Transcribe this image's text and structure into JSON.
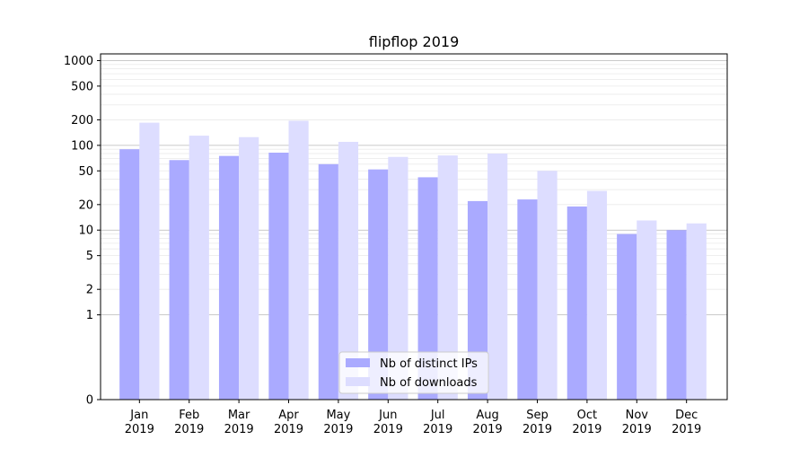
{
  "chart_data": {
    "type": "bar",
    "title": "flipflop 2019",
    "xlabel": "",
    "ylabel": "",
    "yscale": "symlog",
    "ylim": [
      0,
      1200
    ],
    "grid": true,
    "legend_position": "bottom-center",
    "categories": [
      {
        "month": "Jan",
        "year": "2019"
      },
      {
        "month": "Feb",
        "year": "2019"
      },
      {
        "month": "Mar",
        "year": "2019"
      },
      {
        "month": "Apr",
        "year": "2019"
      },
      {
        "month": "May",
        "year": "2019"
      },
      {
        "month": "Jun",
        "year": "2019"
      },
      {
        "month": "Jul",
        "year": "2019"
      },
      {
        "month": "Aug",
        "year": "2019"
      },
      {
        "month": "Sep",
        "year": "2019"
      },
      {
        "month": "Oct",
        "year": "2019"
      },
      {
        "month": "Nov",
        "year": "2019"
      },
      {
        "month": "Dec",
        "year": "2019"
      }
    ],
    "y_ticks": [
      {
        "value": 0,
        "label": "0"
      },
      {
        "value": 1,
        "label": "1"
      },
      {
        "value": 2,
        "label": "2"
      },
      {
        "value": 5,
        "label": "5"
      },
      {
        "value": 10,
        "label": "10"
      },
      {
        "value": 20,
        "label": "20"
      },
      {
        "value": 50,
        "label": "50"
      },
      {
        "value": 100,
        "label": "100"
      },
      {
        "value": 200,
        "label": "200"
      },
      {
        "value": 500,
        "label": "500"
      },
      {
        "value": 1000,
        "label": "1000"
      }
    ],
    "series": [
      {
        "name": "Nb of distinct IPs",
        "color": "#aaaaff",
        "values": [
          90,
          67,
          75,
          82,
          60,
          52,
          42,
          22,
          23,
          19,
          9,
          10
        ]
      },
      {
        "name": "Nb of downloads",
        "color": "#ddddff",
        "values": [
          185,
          130,
          125,
          195,
          110,
          73,
          76,
          80,
          50,
          29,
          13,
          12
        ]
      }
    ]
  }
}
